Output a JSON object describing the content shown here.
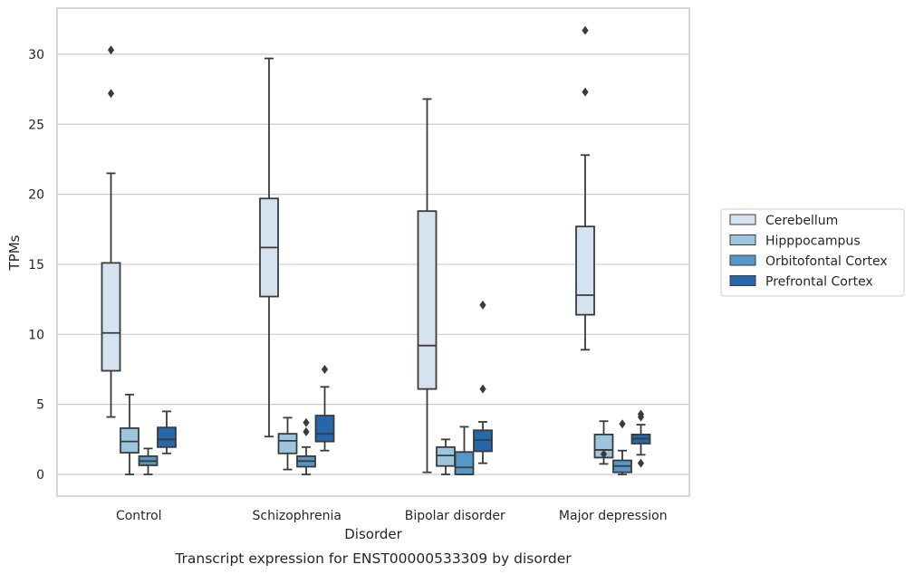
{
  "chart_data": {
    "type": "box",
    "title": "",
    "caption": "Transcript expression for ENST00000533309 by disorder",
    "xlabel": "Disorder",
    "ylabel": "TPMs",
    "ylim": [
      -1.5,
      33
    ],
    "yticks": [
      0,
      5,
      10,
      15,
      20,
      25,
      30
    ],
    "grid": "horizontal",
    "legend_position": "right",
    "categories": [
      "Control",
      "Schizophrenia",
      "Bipolar disorder",
      "Major depression"
    ],
    "series": [
      {
        "name": "Cerebellum",
        "color": "#d5e3f1",
        "boxes": [
          {
            "whisker_low": 4.1,
            "q1": 7.4,
            "median": 10.1,
            "q3": 15.1,
            "whisker_high": 21.5,
            "outliers": [
              27.2,
              30.3
            ]
          },
          {
            "whisker_low": 2.7,
            "q1": 12.7,
            "median": 16.2,
            "q3": 19.7,
            "whisker_high": 29.7,
            "outliers": []
          },
          {
            "whisker_low": 0.15,
            "q1": 6.1,
            "median": 9.2,
            "q3": 18.8,
            "whisker_high": 26.8,
            "outliers": []
          },
          {
            "whisker_low": 8.9,
            "q1": 11.4,
            "median": 12.8,
            "q3": 17.7,
            "whisker_high": 22.8,
            "outliers": [
              27.3,
              31.7
            ]
          }
        ]
      },
      {
        "name": "Hipppocampus",
        "color": "#9cc5de",
        "boxes": [
          {
            "whisker_low": 0.0,
            "q1": 1.55,
            "median": 2.35,
            "q3": 3.3,
            "whisker_high": 5.7,
            "outliers": []
          },
          {
            "whisker_low": 0.35,
            "q1": 1.5,
            "median": 2.4,
            "q3": 2.9,
            "whisker_high": 4.05,
            "outliers": []
          },
          {
            "whisker_low": 0.0,
            "q1": 0.6,
            "median": 1.35,
            "q3": 1.95,
            "whisker_high": 2.5,
            "outliers": []
          },
          {
            "whisker_low": 0.75,
            "q1": 1.2,
            "median": 1.75,
            "q3": 2.85,
            "whisker_high": 3.8,
            "outliers": [
              1.45
            ]
          }
        ]
      },
      {
        "name": "Orbitofontal Cortex",
        "color": "#5597c7",
        "boxes": [
          {
            "whisker_low": 0.0,
            "q1": 0.65,
            "median": 0.95,
            "q3": 1.3,
            "whisker_high": 1.85,
            "outliers": []
          },
          {
            "whisker_low": 0.0,
            "q1": 0.55,
            "median": 0.95,
            "q3": 1.3,
            "whisker_high": 1.95,
            "outliers": [
              3.05,
              3.7
            ]
          },
          {
            "whisker_low": 0.0,
            "q1": 0.0,
            "median": 0.5,
            "q3": 1.6,
            "whisker_high": 3.4,
            "outliers": []
          },
          {
            "whisker_low": 0.0,
            "q1": 0.15,
            "median": 0.6,
            "q3": 1.0,
            "whisker_high": 1.7,
            "outliers": [
              3.6
            ]
          }
        ]
      },
      {
        "name": "Prefrontal Cortex",
        "color": "#2468ab",
        "boxes": [
          {
            "whisker_low": 1.5,
            "q1": 1.95,
            "median": 2.5,
            "q3": 3.35,
            "whisker_high": 4.5,
            "outliers": []
          },
          {
            "whisker_low": 1.7,
            "q1": 2.35,
            "median": 2.9,
            "q3": 4.2,
            "whisker_high": 6.25,
            "outliers": [
              7.5
            ]
          },
          {
            "whisker_low": 0.8,
            "q1": 1.65,
            "median": 2.45,
            "q3": 3.15,
            "whisker_high": 3.75,
            "outliers": [
              6.1,
              12.1
            ]
          },
          {
            "whisker_low": 1.4,
            "q1": 2.2,
            "median": 2.55,
            "q3": 2.85,
            "whisker_high": 3.55,
            "outliers": [
              0.8,
              4.1,
              4.3
            ]
          }
        ]
      }
    ]
  }
}
